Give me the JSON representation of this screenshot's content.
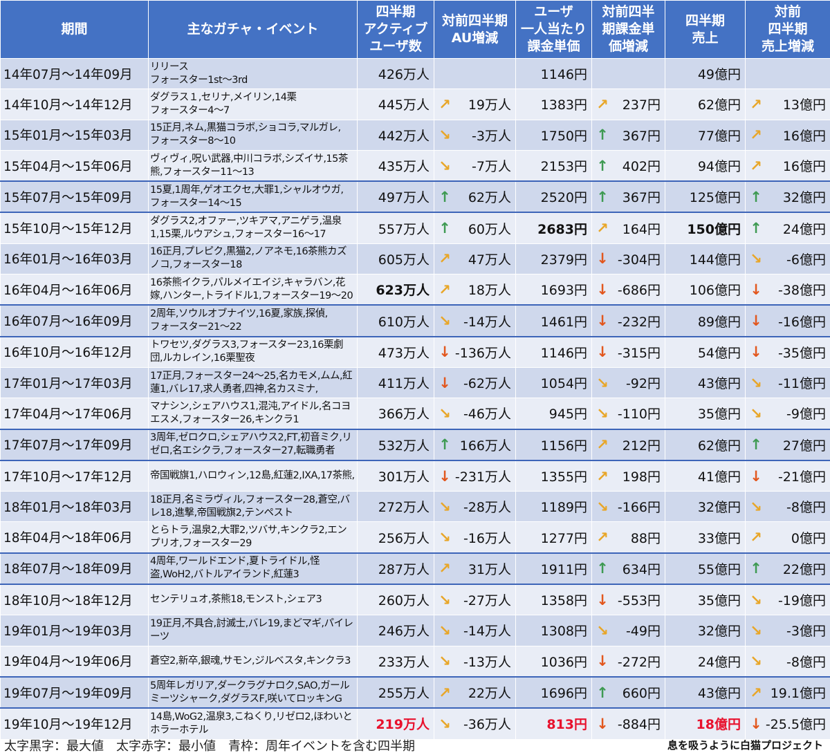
{
  "headers": [
    "期間",
    "主なガチャ・イベント",
    "四半期\nアクティブ\nユーザ数",
    "対前四半期\nAU増減",
    "ユーザ\n一人当たり\n課金単価",
    "対前四半\n期課金単\n価増減",
    "四半期\n売上",
    "対前\n四半期\n売上増減"
  ],
  "rows": [
    {
      "period": "14年07月～14年09月",
      "events": "リリース\nフォースター1st～3rd",
      "au": "426万人",
      "au_arrow": "",
      "au_chg": "",
      "price": "1146円",
      "price_arrow": "",
      "price_chg": "",
      "sales": "49億円",
      "sales_arrow": "",
      "sales_chg": "",
      "anniv": false
    },
    {
      "period": "14年10月～14年12月",
      "events": "ダグラス１,セリナ,メイリン,14栗\nフォースター4～7",
      "au": "445万人",
      "au_arrow": "ne",
      "au_chg": "19万人",
      "price": "1383円",
      "price_arrow": "ne",
      "price_chg": "237円",
      "sales": "62億円",
      "sales_arrow": "ne",
      "sales_chg": "13億円",
      "anniv": false
    },
    {
      "period": "15年01月～15年03月",
      "events": "15正月,ネム,黒猫コラボ,ショコラ,マルガレ,\nフォースター8～10",
      "au": "442万人",
      "au_arrow": "se",
      "au_chg": "-3万人",
      "price": "1750円",
      "price_arrow": "up",
      "price_chg": "367円",
      "sales": "77億円",
      "sales_arrow": "ne",
      "sales_chg": "16億円",
      "anniv": false
    },
    {
      "period": "15年04月～15年06月",
      "events": "ヴィヴィ,呪い武器,中川コラボ,シズイサ,15茶熊,フォースター11～13",
      "au": "435万人",
      "au_arrow": "se",
      "au_chg": "-7万人",
      "price": "2153円",
      "price_arrow": "up",
      "price_chg": "402円",
      "sales": "94億円",
      "sales_arrow": "ne",
      "sales_chg": "16億円",
      "anniv": false
    },
    {
      "period": "15年07月～15年09月",
      "events": "15夏,1周年,ゲオエクセ,大罪1,シャルオウガ,\nフォースター14～15",
      "au": "497万人",
      "au_arrow": "up",
      "au_chg": "62万人",
      "price": "2520円",
      "price_arrow": "up",
      "price_chg": "367円",
      "sales": "125億円",
      "sales_arrow": "up",
      "sales_chg": "32億円",
      "anniv": true
    },
    {
      "period": "15年10月～15年12月",
      "events": "ダグラス2,オファー,ツキアマ,アニゲラ,温泉1,15栗,ルウアシュ,フォースター16～17",
      "au": "557万人",
      "au_arrow": "up",
      "au_chg": "60万人",
      "price": "2683円",
      "price_arrow": "ne",
      "price_chg": "164円",
      "sales": "150億円",
      "sales_arrow": "up",
      "sales_chg": "24億円",
      "anniv": false,
      "price_style": "bold",
      "sales_style": "bold"
    },
    {
      "period": "16年01月～16年03月",
      "events": "16正月,プレピク,黒猫2,ノアネモ,16茶熊カズノコ,フォースター18",
      "au": "605万人",
      "au_arrow": "ne",
      "au_chg": "47万人",
      "price": "2379円",
      "price_arrow": "down",
      "price_chg": "-304円",
      "sales": "144億円",
      "sales_arrow": "se",
      "sales_chg": "-6億円",
      "anniv": false
    },
    {
      "period": "16年04月～16年06月",
      "events": "16茶熊イクラ,パルメイエイジ,キャラバン,花嫁,ハンター,トライドル1,フォースター19～20",
      "au": "623万人",
      "au_arrow": "ne",
      "au_chg": "18万人",
      "price": "1693円",
      "price_arrow": "down",
      "price_chg": "-686円",
      "sales": "106億円",
      "sales_arrow": "down",
      "sales_chg": "-38億円",
      "anniv": false,
      "au_style": "bold"
    },
    {
      "period": "16年07月～16年09月",
      "events": "2周年,ソウルオブナイツ,16夏,家族,探偵,\nフォースター21～22",
      "au": "610万人",
      "au_arrow": "se",
      "au_chg": "-14万人",
      "price": "1461円",
      "price_arrow": "down",
      "price_chg": "-232円",
      "sales": "89億円",
      "sales_arrow": "down",
      "sales_chg": "-16億円",
      "anniv": true
    },
    {
      "period": "16年10月～16年12月",
      "events": "トワセツ,ダグラス3,フォースター23,16栗劇団,ルカレイン,16栗聖夜",
      "au": "473万人",
      "au_arrow": "down",
      "au_chg": "-136万人",
      "price": "1146円",
      "price_arrow": "down",
      "price_chg": "-315円",
      "sales": "54億円",
      "sales_arrow": "down",
      "sales_chg": "-35億円",
      "anniv": false
    },
    {
      "period": "17年01月～17年03月",
      "events": "17正月,フォースター24～25,名カモメ,ムム,紅蓮1,バレ17,求人勇者,四神,名カスミナ,",
      "au": "411万人",
      "au_arrow": "down",
      "au_chg": "-62万人",
      "price": "1054円",
      "price_arrow": "se",
      "price_chg": "-92円",
      "sales": "43億円",
      "sales_arrow": "se",
      "sales_chg": "-11億円",
      "anniv": false
    },
    {
      "period": "17年04月～17年06月",
      "events": "マナシン,シェアハウス1,混沌,アイドル,名コヨエスメ,フォースター26,キンクラ1",
      "au": "366万人",
      "au_arrow": "se",
      "au_chg": "-46万人",
      "price": "945円",
      "price_arrow": "se",
      "price_chg": "-110円",
      "sales": "35億円",
      "sales_arrow": "se",
      "sales_chg": "-9億円",
      "anniv": false
    },
    {
      "period": "17年07月～17年09月",
      "events": "3周年,ゼロクロ,シェアハウス2,FT,初音ミク,リゼロ,名エシクラ,フォースター27,転職勇者",
      "au": "532万人",
      "au_arrow": "up",
      "au_chg": "166万人",
      "price": "1156円",
      "price_arrow": "ne",
      "price_chg": "212円",
      "sales": "62億円",
      "sales_arrow": "up",
      "sales_chg": "27億円",
      "anniv": true
    },
    {
      "period": "17年10月～17年12月",
      "events": "帝国戦旗1,ハロウィン,12島,紅蓮2,IXA,17茶熊,",
      "au": "301万人",
      "au_arrow": "down",
      "au_chg": "-231万人",
      "price": "1355円",
      "price_arrow": "ne",
      "price_chg": "198円",
      "sales": "41億円",
      "sales_arrow": "down",
      "sales_chg": "-21億円",
      "anniv": false
    },
    {
      "period": "18年01月～18年03月",
      "events": "18正月,名ミラヴィル,フォースター28,蒼空,バレ18,進撃,帝国戦旗2,テンペスト",
      "au": "272万人",
      "au_arrow": "se",
      "au_chg": "-28万人",
      "price": "1189円",
      "price_arrow": "se",
      "price_chg": "-166円",
      "sales": "32億円",
      "sales_arrow": "se",
      "sales_chg": "-8億円",
      "anniv": false
    },
    {
      "period": "18年04月～18年06月",
      "events": "とらトラ,温泉2,大罪2,ツバサ,キンクラ2,エンプリオ,フォースター29",
      "au": "256万人",
      "au_arrow": "se",
      "au_chg": "-16万人",
      "price": "1277円",
      "price_arrow": "ne",
      "price_chg": "88円",
      "sales": "33億円",
      "sales_arrow": "ne",
      "sales_chg": "0億円",
      "anniv": false
    },
    {
      "period": "18年07月～18年09月",
      "events": "4周年,ワールドエンド,夏トライドル,怪盗,WoH2,バトルアイランド,紅蓮3",
      "au": "287万人",
      "au_arrow": "ne",
      "au_chg": "31万人",
      "price": "1911円",
      "price_arrow": "up",
      "price_chg": "634円",
      "sales": "55億円",
      "sales_arrow": "up",
      "sales_chg": "22億円",
      "anniv": true
    },
    {
      "period": "18年10月～18年12月",
      "events": "センテリュオ,茶熊18,モンスト,シェア3",
      "au": "260万人",
      "au_arrow": "se",
      "au_chg": "-27万人",
      "price": "1358円",
      "price_arrow": "down",
      "price_chg": "-553円",
      "sales": "35億円",
      "sales_arrow": "se",
      "sales_chg": "-19億円",
      "anniv": false
    },
    {
      "period": "19年01月～19年03月",
      "events": "19正月,不具合,討滅士,バレ19,まどマギ,パイレーツ",
      "au": "246万人",
      "au_arrow": "se",
      "au_chg": "-14万人",
      "price": "1308円",
      "price_arrow": "se",
      "price_chg": "-49円",
      "sales": "32億円",
      "sales_arrow": "se",
      "sales_chg": "-3億円",
      "anniv": false
    },
    {
      "period": "19年04月～19年06月",
      "events": "蒼空2,新卒,銀魂,サモン,ジルベスタ,キンクラ3",
      "au": "233万人",
      "au_arrow": "se",
      "au_chg": "-13万人",
      "price": "1036円",
      "price_arrow": "down",
      "price_chg": "-272円",
      "sales": "24億円",
      "sales_arrow": "se",
      "sales_chg": "-8億円",
      "anniv": false
    },
    {
      "period": "19年07月～19年09月",
      "events": "5周年レガリア,ダークラグナロク,SAO,ガールミーツシャーク,ダグラスF,咲いてロッキンG",
      "au": "255万人",
      "au_arrow": "ne",
      "au_chg": "22万人",
      "price": "1696円",
      "price_arrow": "up",
      "price_chg": "660円",
      "sales": "43億円",
      "sales_arrow": "ne",
      "sales_chg": "19.1億円",
      "anniv": true
    },
    {
      "period": "19年10月～19年12月",
      "events": "14島,WoG2,温泉3,こねくり,リゼロ2,ほわいとホラーホテル",
      "au": "219万人",
      "au_arrow": "se",
      "au_chg": "-36万人",
      "price": "813円",
      "price_arrow": "down",
      "price_chg": "-884円",
      "sales": "18億円",
      "sales_arrow": "down",
      "sales_chg": "-25.5億円",
      "anniv": false,
      "au_style": "red",
      "price_style": "red",
      "sales_style": "red"
    }
  ],
  "footer": {
    "legend": "太字黒字：最大値　太字赤字：最小値　青枠：周年イベントを含む四半期",
    "credit": "息を吸うように白猫プロジェクト"
  },
  "colors": {
    "header": "#4472C4",
    "row_even": "#CFD8EC",
    "row_odd": "#E9EDF6",
    "anniversary_border": "#3C64B8",
    "arrow_up": "#3E9A52",
    "arrow_down": "#E2571E",
    "arrow_diagonal": "#E8A628",
    "min_value": "#E8112D"
  },
  "icons": {
    "up": "arrow-up-icon",
    "down": "arrow-down-icon",
    "ne": "arrow-up-right-icon",
    "se": "arrow-down-right-icon"
  }
}
